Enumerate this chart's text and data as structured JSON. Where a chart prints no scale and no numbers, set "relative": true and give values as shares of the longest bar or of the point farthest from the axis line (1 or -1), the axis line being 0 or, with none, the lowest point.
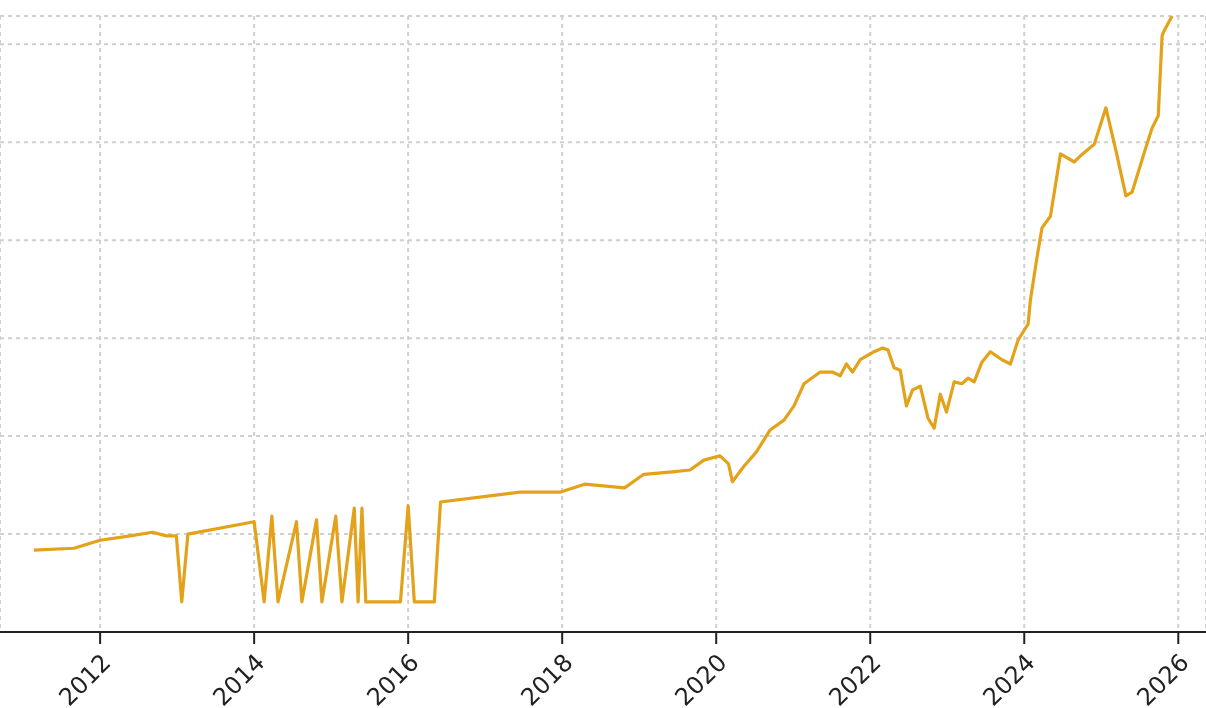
{
  "chart_data": {
    "type": "line",
    "relative": true,
    "xlim": [
      2010.7,
      2026.36
    ],
    "xticks": [
      2012,
      2014,
      2016,
      2018,
      2020,
      2022,
      2024,
      2026
    ],
    "grid": true,
    "legend": false,
    "marker": "none",
    "line_style": "solid",
    "x": [
      2011.14,
      2011.66,
      2012.0,
      2012.39,
      2012.68,
      2012.86,
      2012.99,
      2013.06,
      2013.14,
      2014.0,
      2014.13,
      2014.23,
      2014.31,
      2014.55,
      2014.62,
      2014.81,
      2014.88,
      2015.06,
      2015.14,
      2015.3,
      2015.35,
      2015.4,
      2015.45,
      2015.9,
      2016.0,
      2016.08,
      2016.34,
      2016.42,
      2017.06,
      2017.45,
      2017.97,
      2018.29,
      2018.81,
      2019.06,
      2019.43,
      2019.66,
      2019.84,
      2020.05,
      2020.16,
      2020.21,
      2020.36,
      2020.52,
      2020.7,
      2020.88,
      2021.01,
      2021.14,
      2021.35,
      2021.51,
      2021.61,
      2021.69,
      2021.77,
      2021.87,
      2022.05,
      2022.16,
      2022.23,
      2022.31,
      2022.39,
      2022.47,
      2022.55,
      2022.65,
      2022.75,
      2022.83,
      2022.91,
      2022.99,
      2023.09,
      2023.19,
      2023.27,
      2023.35,
      2023.45,
      2023.56,
      2023.71,
      2023.82,
      2023.92,
      2024.05,
      2024.08,
      2024.16,
      2024.23,
      2024.34,
      2024.47,
      2024.65,
      2024.73,
      2024.91,
      2025.06,
      2025.19,
      2025.32,
      2025.4,
      2025.56,
      2025.66,
      2025.74,
      2025.79,
      2025.82,
      2025.92
    ],
    "series": [
      {
        "color": "#e3a21a",
        "values": [
          0.133,
          0.136,
          0.149,
          0.156,
          0.162,
          0.156,
          0.156,
          0.049,
          0.159,
          0.179,
          0.049,
          0.188,
          0.049,
          0.179,
          0.049,
          0.182,
          0.049,
          0.188,
          0.049,
          0.201,
          0.049,
          0.201,
          0.049,
          0.049,
          0.205,
          0.049,
          0.049,
          0.211,
          0.221,
          0.227,
          0.227,
          0.24,
          0.234,
          0.256,
          0.26,
          0.263,
          0.279,
          0.286,
          0.273,
          0.244,
          0.269,
          0.292,
          0.328,
          0.344,
          0.367,
          0.403,
          0.422,
          0.422,
          0.416,
          0.435,
          0.422,
          0.442,
          0.455,
          0.461,
          0.458,
          0.429,
          0.425,
          0.367,
          0.393,
          0.399,
          0.347,
          0.331,
          0.386,
          0.357,
          0.406,
          0.403,
          0.412,
          0.406,
          0.438,
          0.455,
          0.442,
          0.435,
          0.474,
          0.5,
          0.539,
          0.604,
          0.656,
          0.675,
          0.776,
          0.763,
          0.773,
          0.792,
          0.851,
          0.782,
          0.708,
          0.714,
          0.779,
          0.818,
          0.838,
          0.968,
          0.977,
          1
        ]
      }
    ]
  }
}
